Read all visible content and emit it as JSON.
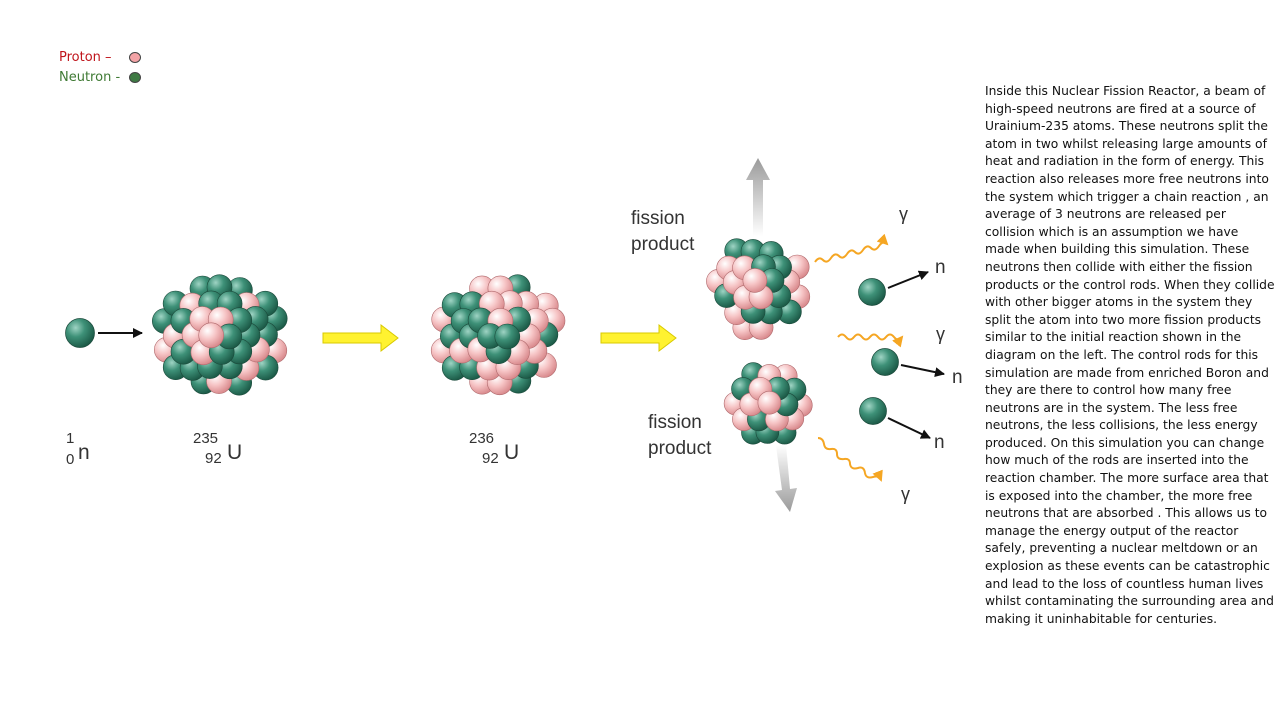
{
  "legend": {
    "proton_label": "Proton –",
    "neutron_label": "Neutron -",
    "proton_color": "#f3a3a6",
    "neutron_color": "#3f7a44"
  },
  "diagram": {
    "neutron_symbol": {
      "mass": "1",
      "atomic": "0",
      "element": "n"
    },
    "u235_symbol": {
      "mass": "235",
      "atomic": "92",
      "element": "U"
    },
    "u236_symbol": {
      "mass": "236",
      "atomic": "92",
      "element": "U"
    },
    "fission_product_label_top": [
      "fission",
      "product"
    ],
    "fission_product_label_bottom": [
      "fission",
      "product"
    ],
    "released_neutron_label": "n",
    "gamma_label": "γ",
    "colors": {
      "neutron_sphere": "#3e9178",
      "proton_sphere": "#f6c4c5",
      "reaction_arrow": "#fff230",
      "gamma_wave": "#f5a623",
      "product_arrow": "#b0b0b0"
    }
  },
  "description": "Inside this Nuclear Fission Reactor, a beam of high-speed neutrons are fired at a source of Urainium-235 atoms. These neutrons split the atom in two whilst releasing large amounts of heat and radiation in the form of energy.  This reaction also releases more free neutrons into the system which trigger a chain reaction , an average of 3  neutrons are released per collision which is an assumption we have made when building this simulation. These neutrons then collide with either the fission products or the control rods. When they collide with other bigger atoms in the system they split the atom into two more fission products similar to the initial reaction shown in the diagram on the left. The control rods for this simulation are made from enriched Boron and they are there to control how many free neutrons are in the system. The less free neutrons, the less collisions, the less energy produced. On this simulation you can change how much of the rods are inserted into the reaction chamber. The more surface area that is exposed into the chamber, the more free neutrons that are absorbed  . This allows us to manage the energy output of the reactor safely, preventing a nuclear meltdown or an explosion as these events can be catastrophic and lead to the loss of countless human lives whilst contaminating the surrounding area and making it uninhabitable for centuries."
}
